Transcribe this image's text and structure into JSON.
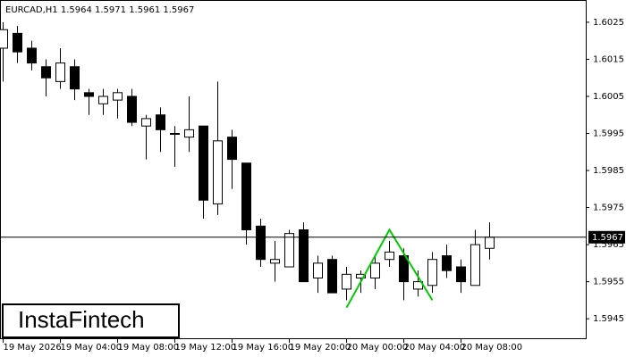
{
  "chart_data": {
    "type": "candlestick",
    "title": "EURCAD,H1  1.5964 1.5971 1.5961 1.5967",
    "logo": "InstaFintech",
    "categories": [
      "19 May 2026",
      null,
      null,
      null,
      "19 May 04:00",
      null,
      null,
      null,
      "19 May 08:00",
      null,
      null,
      null,
      "19 May 12:00",
      null,
      null,
      null,
      "19 May 16:00",
      null,
      null,
      null,
      "19 May 20:00",
      null,
      null,
      null,
      "20 May 00:00",
      null,
      null,
      null,
      "20 May 04:00",
      null,
      null,
      null,
      "20 May 08:00",
      null,
      null
    ],
    "open": [
      1.6018,
      1.6022,
      1.6018,
      1.6013,
      1.6009,
      1.6013,
      1.6006,
      1.6003,
      1.6004,
      1.6005,
      1.5997,
      1.6,
      1.5995,
      1.5994,
      1.5997,
      1.5976,
      1.5994,
      1.5987,
      1.597,
      1.596,
      1.5959,
      1.5969,
      1.5956,
      1.5961,
      1.5953,
      1.5956,
      1.5956,
      1.5961,
      1.5962,
      1.5953,
      1.5954,
      1.5962,
      1.5959,
      1.5954,
      1.5964
    ],
    "high": [
      1.6025,
      1.6024,
      1.602,
      1.6015,
      1.6018,
      1.6015,
      1.6007,
      1.6007,
      1.6007,
      1.6007,
      1.6,
      1.6002,
      1.5997,
      1.6005,
      1.5997,
      1.6009,
      1.5996,
      1.5987,
      1.5972,
      1.5966,
      1.5969,
      1.5971,
      1.5962,
      1.5962,
      1.5959,
      1.5958,
      1.5962,
      1.5966,
      1.5964,
      1.5958,
      1.5963,
      1.5965,
      1.5961,
      1.5969,
      1.5971
    ],
    "low": [
      1.6009,
      1.6014,
      1.6012,
      1.6005,
      1.6007,
      1.6004,
      1.6,
      1.6,
      1.5999,
      1.5997,
      1.5988,
      1.599,
      1.5986,
      1.599,
      1.5972,
      1.5973,
      1.598,
      1.5965,
      1.5959,
      1.5955,
      1.5959,
      1.5955,
      1.5952,
      1.5952,
      1.595,
      1.5952,
      1.5953,
      1.5959,
      1.595,
      1.5951,
      1.5952,
      1.5956,
      1.5952,
      1.5954,
      1.5961
    ],
    "close": [
      1.6023,
      1.6017,
      1.6014,
      1.601,
      1.6014,
      1.6007,
      1.6005,
      1.6005,
      1.6006,
      1.5998,
      1.5999,
      1.5996,
      1.5995,
      1.5996,
      1.5977,
      1.5993,
      1.5988,
      1.5969,
      1.5961,
      1.5961,
      1.5968,
      1.5955,
      1.596,
      1.5952,
      1.5957,
      1.5957,
      1.596,
      1.5963,
      1.5955,
      1.5955,
      1.5961,
      1.5958,
      1.5955,
      1.5965,
      1.5967
    ],
    "ylim": [
      1.59395,
      1.6031
    ],
    "yticks": [
      1.6025,
      1.6015,
      1.6005,
      1.5995,
      1.5985,
      1.5975,
      1.5965,
      1.5955,
      1.5945
    ],
    "current_price": 1.5967,
    "pattern": {
      "color": "#00cc00",
      "x": [
        24,
        27,
        30
      ],
      "values": [
        1.5948,
        1.5969,
        1.595
      ]
    }
  }
}
